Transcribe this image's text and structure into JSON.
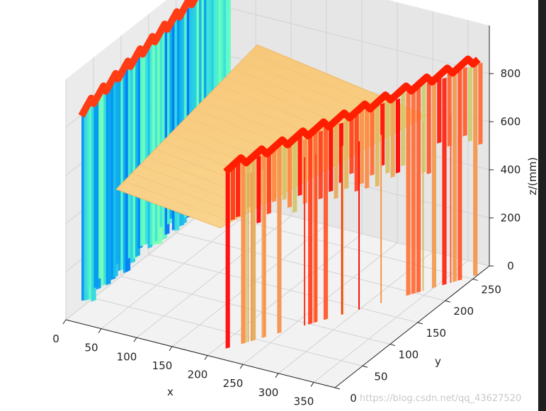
{
  "chart_data": {
    "type": "surface3d",
    "title": "",
    "xlabel": "x",
    "ylabel": "y",
    "zlabel": "z/(mm)",
    "xlim": [
      0,
      380
    ],
    "ylim": [
      0,
      280
    ],
    "zlim": [
      0,
      1000
    ],
    "x_ticks": [
      0,
      50,
      100,
      150,
      200,
      250,
      300,
      350
    ],
    "y_ticks": [
      0,
      50,
      100,
      150,
      200,
      250
    ],
    "z_ticks": [
      0,
      200,
      400,
      600,
      800
    ],
    "grid": true,
    "colormap": "rainbow",
    "surface": {
      "plane_depth_mm": 560,
      "left_wall_top_mm": 880,
      "right_wall_top_mm": 860
    },
    "left_wall": [
      {
        "y": 10,
        "x": 35,
        "top": 880
      },
      {
        "y": 60,
        "x": 30,
        "top": 900
      },
      {
        "y": 110,
        "x": 25,
        "top": 910
      },
      {
        "y": 160,
        "x": 20,
        "top": 930
      },
      {
        "y": 210,
        "x": 15,
        "top": 950
      },
      {
        "y": 260,
        "x": 10,
        "top": 960
      }
    ],
    "right_wall": [
      {
        "x": 220,
        "y": 40,
        "top": 760
      },
      {
        "x": 260,
        "y": 80,
        "top": 800
      },
      {
        "x": 300,
        "y": 130,
        "top": 840
      },
      {
        "x": 340,
        "y": 180,
        "top": 870
      },
      {
        "x": 370,
        "y": 230,
        "top": 900
      }
    ]
  },
  "watermark": "https://blog.csdn.net/qq_43627520"
}
